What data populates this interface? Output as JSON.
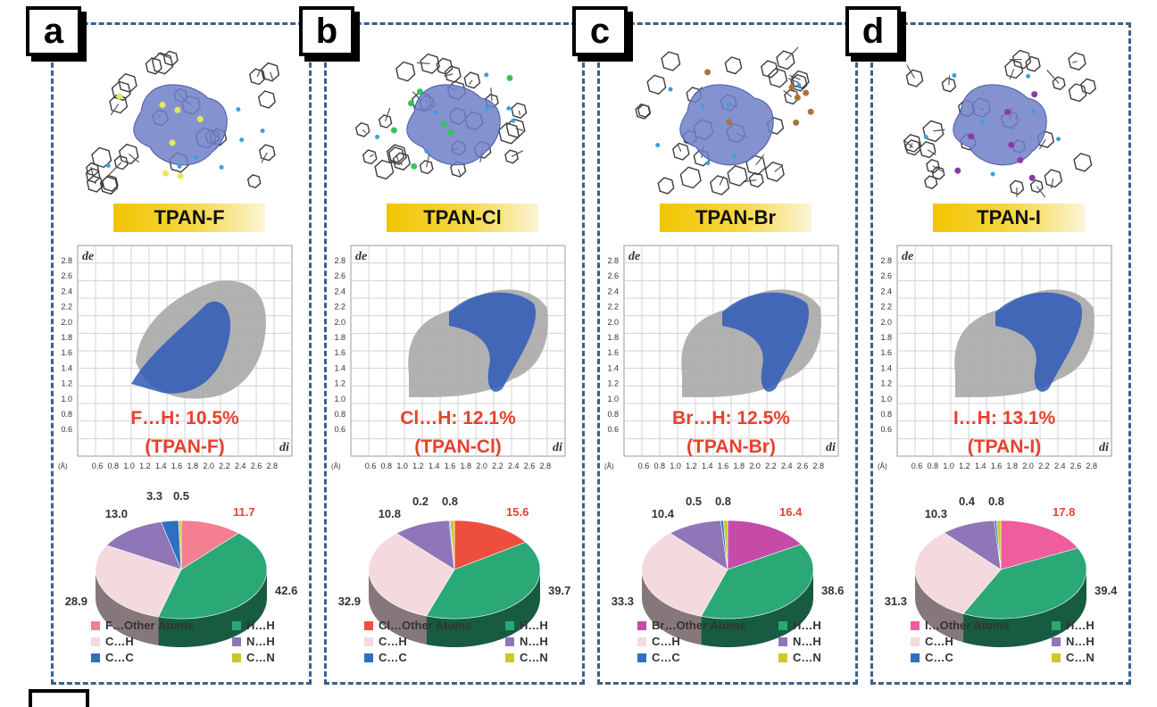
{
  "colors": {
    "frame": "#3a5f8c",
    "hirshfeld_surface": "#6f7fc8",
    "scatter_gray": "#a8a8a8",
    "scatter_blue": "#2f5ab8",
    "highlight_red": "#e8402e",
    "banner_yellow": "#f2c400",
    "pie": {
      "HH": "#2aa875",
      "CH": "#f4d9df",
      "NH": "#8e76b8",
      "CC": "#2f6fc0",
      "CN": "#c9c92a"
    }
  },
  "axis": {
    "de_label": "de",
    "di_label": "di",
    "unit": "(Å)",
    "y_ticks": [
      "2.8",
      "2.6",
      "2.4",
      "2.2",
      "2.0",
      "1.8",
      "1.6",
      "1.4",
      "1.2",
      "1.0",
      "0.8",
      "0.6"
    ],
    "x_ticks": [
      "0.6",
      "0.8",
      "1.0",
      "1.2",
      "1.4",
      "1.6",
      "1.8",
      "2.0",
      "2.2",
      "2.4",
      "2.6",
      "2.8"
    ]
  },
  "panels": [
    {
      "letter": "a",
      "name": "TPAN-F",
      "contact": "F…H: 10.5%",
      "compound": "(TPAN-F)",
      "legend": [
        "F…Other Atoms",
        "H…H",
        "C…H",
        "N…H",
        "C…C",
        "C…N"
      ]
    },
    {
      "letter": "b",
      "name": "TPAN-Cl",
      "contact": "Cl…H: 12.1%",
      "compound": "(TPAN-Cl)",
      "legend": [
        "Cl…Other Atoms",
        "H…H",
        "C…H",
        "N…H",
        "C…C",
        "C…N"
      ]
    },
    {
      "letter": "c",
      "name": "TPAN-Br",
      "contact": "Br…H: 12.5%",
      "compound": "(TPAN-Br)",
      "legend": [
        "Br…Other Atoms",
        "H…H",
        "C…H",
        "N…H",
        "C…C",
        "C…N"
      ]
    },
    {
      "letter": "d",
      "name": "TPAN-I",
      "contact": "I…H: 13.1%",
      "compound": "(TPAN-I)",
      "legend": [
        "I…Other Atoms",
        "H…H",
        "C…H",
        "N…H",
        "C…C",
        "C…N"
      ]
    }
  ],
  "chart_data": [
    {
      "type": "pie",
      "title": "TPAN-F",
      "categories": [
        "F…Other Atoms",
        "H…H",
        "C…H",
        "N…H",
        "C…C",
        "C…N"
      ],
      "values": [
        11.7,
        42.6,
        28.9,
        13.0,
        3.3,
        0.5
      ],
      "labels": [
        "11.7",
        "42.6",
        "28.9",
        "13.0",
        "3.3",
        "0.5"
      ],
      "halogen_color": "#f47f90"
    },
    {
      "type": "pie",
      "title": "TPAN-Cl",
      "categories": [
        "Cl…Other Atoms",
        "H…H",
        "C…H",
        "N…H",
        "C…C",
        "C…N"
      ],
      "values": [
        15.6,
        39.7,
        32.9,
        10.8,
        0.2,
        0.8
      ],
      "labels": [
        "15.6",
        "39.7",
        "32.9",
        "10.8",
        "0.2",
        "0.8"
      ],
      "halogen_color": "#ee4e3e"
    },
    {
      "type": "pie",
      "title": "TPAN-Br",
      "categories": [
        "Br…Other Atoms",
        "H…H",
        "C…H",
        "N…H",
        "C…C",
        "C…N"
      ],
      "values": [
        16.4,
        38.6,
        33.3,
        10.4,
        0.5,
        0.8
      ],
      "labels": [
        "16.4",
        "38.6",
        "33.3",
        "10.4",
        "0.5",
        "0.8"
      ],
      "halogen_color": "#c64aa8"
    },
    {
      "type": "pie",
      "title": "TPAN-I",
      "categories": [
        "I…Other Atoms",
        "H…H",
        "C…H",
        "N…H",
        "C…C",
        "C…N"
      ],
      "values": [
        17.8,
        39.4,
        31.3,
        10.3,
        0.4,
        0.8
      ],
      "labels": [
        "17.8",
        "39.4",
        "31.3",
        "10.3",
        "0.4",
        "0.8"
      ],
      "halogen_color": "#ee5d9c"
    }
  ]
}
